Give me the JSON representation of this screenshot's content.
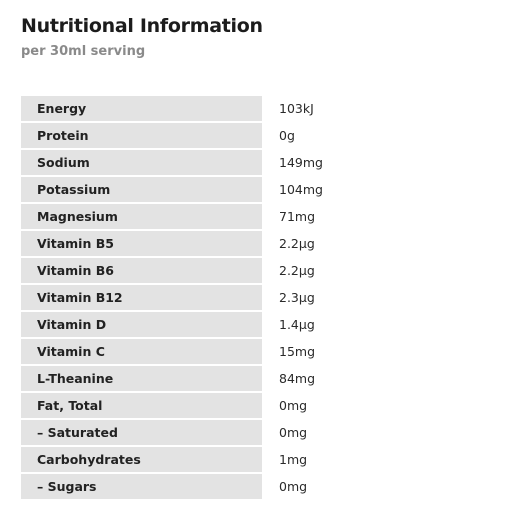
{
  "header": {
    "title": "Nutritional Information",
    "subtitle": "per 30ml serving"
  },
  "nutrition": {
    "rows": [
      {
        "label": "Energy",
        "value": "103kJ"
      },
      {
        "label": "Protein",
        "value": "0g"
      },
      {
        "label": "Sodium",
        "value": "149mg"
      },
      {
        "label": "Potassium",
        "value": "104mg"
      },
      {
        "label": "Magnesium",
        "value": "71mg"
      },
      {
        "label": "Vitamin B5",
        "value": "2.2µg"
      },
      {
        "label": "Vitamin B6",
        "value": "2.2µg"
      },
      {
        "label": "Vitamin B12",
        "value": "2.3µg"
      },
      {
        "label": "Vitamin D",
        "value": "1.4µg"
      },
      {
        "label": "Vitamin C",
        "value": "15mg"
      },
      {
        "label": "L-Theanine",
        "value": "84mg"
      },
      {
        "label": "Fat, Total",
        "value": "0mg"
      },
      {
        "label": "– Saturated",
        "value": "0mg"
      },
      {
        "label": "Carbohydrates",
        "value": "1mg"
      },
      {
        "label": "– Sugars",
        "value": "0mg"
      }
    ]
  },
  "colors": {
    "label_background": "#e3e3e3",
    "title_text": "#1c1c1c",
    "subtitle_text": "#8a8a8a"
  }
}
